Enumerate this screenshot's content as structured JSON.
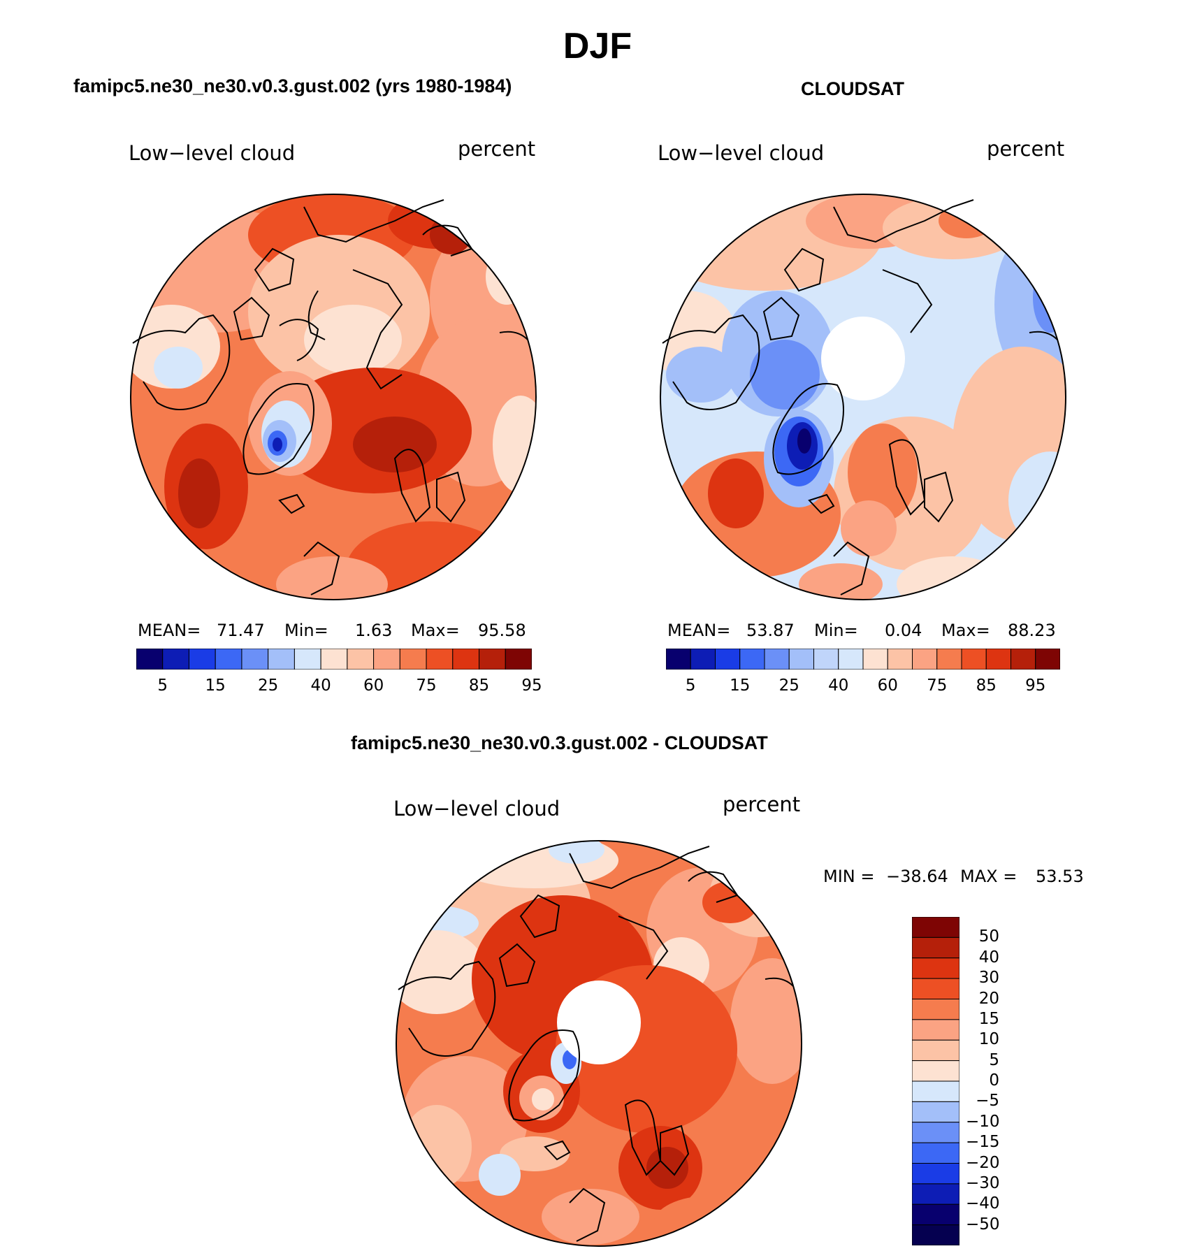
{
  "season": "DJF",
  "panels": [
    {
      "title": "famipc5.ne30_ne30.v0.3.gust.002 (yrs 1980-1984)",
      "variable": "Low−level cloud",
      "units": "percent",
      "stats": {
        "mean_label": "MEAN=",
        "mean": "71.47",
        "min_label": "Min=",
        "min": "1.63",
        "max_label": "Max=",
        "max": "95.58"
      },
      "colorbar_ticks": [
        "5",
        "15",
        "25",
        "40",
        "60",
        "75",
        "85",
        "95"
      ],
      "colorbar_colors": [
        "#08006e",
        "#0d1db5",
        "#1a3ce6",
        "#3c68f5",
        "#6b90f7",
        "#a3bff9",
        "#d6e7fb",
        "#fde2d2",
        "#fcc3a6",
        "#fba383",
        "#f57c4e",
        "#ed5024",
        "#dd3411",
        "#b5200a",
        "#7e0504"
      ],
      "has_polar_hole": false
    },
    {
      "title": "CLOUDSAT",
      "variable": "Low−level cloud",
      "units": "percent",
      "stats": {
        "mean_label": "MEAN=",
        "mean": "53.87",
        "min_label": "Min=",
        "min": "0.04",
        "max_label": "Max=",
        "max": "88.23"
      },
      "colorbar_ticks": [
        "5",
        "15",
        "25",
        "40",
        "60",
        "75",
        "85",
        "95"
      ],
      "colorbar_colors": [
        "#08006e",
        "#0d1db5",
        "#1a3ce6",
        "#3c68f5",
        "#6b90f7",
        "#a3bff9",
        "#c0d5fa",
        "#d6e7fb",
        "#fde2d2",
        "#fcc3a6",
        "#fba383",
        "#f57c4e",
        "#ed5024",
        "#dd3411",
        "#b5200a",
        "#7e0504"
      ],
      "has_polar_hole": true
    }
  ],
  "difference": {
    "title": "famipc5.ne30_ne30.v0.3.gust.002 - CLOUDSAT",
    "variable": "Low−level cloud",
    "units": "percent",
    "stats": {
      "min_label": "MIN =",
      "min": "−38.64",
      "max_label": "MAX =",
      "max": "53.53"
    },
    "colorbar_ticks": [
      "50",
      "40",
      "30",
      "20",
      "15",
      "10",
      "5",
      "0",
      "−5",
      "−10",
      "−15",
      "−20",
      "−30",
      "−40",
      "−50"
    ],
    "colorbar_colors": [
      "#7e0504",
      "#b5200a",
      "#dd3411",
      "#ed5024",
      "#f57c4e",
      "#fba383",
      "#fcc3a6",
      "#fde2d2",
      "#d6e7fb",
      "#a3bff9",
      "#6b90f7",
      "#3c68f5",
      "#1a3ce6",
      "#0d1db5",
      "#08006e",
      "#050050"
    ]
  }
}
